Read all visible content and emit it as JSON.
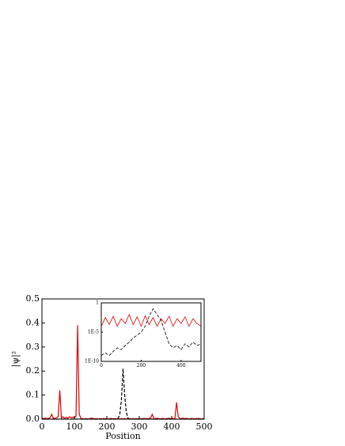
{
  "chart_data": [
    {
      "type": "line",
      "xlabel": "Position",
      "ylabel": "|ψ|²",
      "x": [
        0,
        5,
        10,
        15,
        20,
        25,
        30,
        35,
        40,
        45,
        50,
        55,
        60,
        65,
        70,
        75,
        80,
        85,
        90,
        95,
        100,
        105,
        110,
        115,
        120,
        125,
        130,
        135,
        140,
        145,
        150,
        155,
        160,
        165,
        170,
        175,
        180,
        185,
        190,
        195,
        200,
        205,
        210,
        215,
        220,
        225,
        230,
        235,
        240,
        245,
        250,
        255,
        260,
        265,
        270,
        275,
        280,
        285,
        290,
        295,
        300,
        305,
        310,
        315,
        320,
        325,
        330,
        335,
        340,
        345,
        350,
        355,
        360,
        365,
        370,
        375,
        380,
        385,
        390,
        395,
        400,
        405,
        410,
        415,
        420,
        425,
        430,
        435,
        440,
        445,
        450,
        455,
        460,
        465,
        470,
        475,
        480,
        485,
        490,
        495,
        500
      ],
      "series": [
        {
          "color": "#e00000",
          "dashed": false,
          "values": [
            0.003,
            0.002,
            0.004,
            0.002,
            0.003,
            0.005,
            0.02,
            0.004,
            0.003,
            0.006,
            0.01,
            0.12,
            0.004,
            0.01,
            0.003,
            0.008,
            0.004,
            0.01,
            0.006,
            0.008,
            0.005,
            0.012,
            0.39,
            0.02,
            0.004,
            0.002,
            0.001,
            0.002,
            0.001,
            0.002,
            0.003,
            0.004,
            0.002,
            0.001,
            0.002,
            0.001,
            0.002,
            0.001,
            0.003,
            0.001,
            0.002,
            0.001,
            0.002,
            0.003,
            0.001,
            0.002,
            0.001,
            0.002,
            0.001,
            0.002,
            0.001,
            0.002,
            0.001,
            0.003,
            0.002,
            0.001,
            0.002,
            0.001,
            0.002,
            0.001,
            0.002,
            0.001,
            0.002,
            0.003,
            0.002,
            0.001,
            0.003,
            0.004,
            0.02,
            0.003,
            0.002,
            0.004,
            0.002,
            0.001,
            0.003,
            0.002,
            0.001,
            0.002,
            0.004,
            0.002,
            0.003,
            0.002,
            0.004,
            0.07,
            0.01,
            0.003,
            0.002,
            0.004,
            0.002,
            0.003,
            0.002,
            0.001,
            0.003,
            0.002,
            0.001,
            0.002,
            0.003,
            0.002,
            0.001,
            0.002,
            0.002
          ]
        },
        {
          "color": "#000000",
          "dashed": true,
          "values": [
            0,
            0,
            0,
            0,
            0,
            0,
            0,
            0,
            0,
            0,
            0,
            0,
            0,
            0,
            0,
            0,
            0,
            0,
            0,
            0,
            0,
            0,
            0,
            0,
            0,
            0,
            0,
            0,
            0,
            0,
            0,
            0,
            0,
            0,
            0,
            0,
            0,
            0,
            0,
            0,
            0,
            0,
            0,
            0,
            0,
            0,
            0,
            0.003,
            0.02,
            0.08,
            0.21,
            0.1,
            0.03,
            0.005,
            0,
            0,
            0,
            0,
            0,
            0,
            0,
            0,
            0,
            0,
            0,
            0,
            0,
            0,
            0,
            0,
            0,
            0,
            0,
            0,
            0,
            0,
            0,
            0,
            0,
            0,
            0,
            0,
            0,
            0,
            0,
            0,
            0,
            0,
            0,
            0,
            0,
            0,
            0,
            0,
            0,
            0,
            0,
            0,
            0,
            0,
            0
          ]
        }
      ],
      "xlim": [
        0,
        500
      ],
      "xticks": [
        0,
        100,
        200,
        300,
        400,
        500
      ],
      "ylim": [
        0,
        0.5
      ],
      "yticks": [
        {
          "value": 0,
          "label": "0.0"
        },
        0.1,
        0.2,
        0.3,
        0.4,
        0.5
      ]
    },
    {
      "type": "line",
      "ylog": true,
      "x": [
        0,
        20,
        40,
        60,
        80,
        100,
        120,
        140,
        160,
        180,
        200,
        220,
        240,
        260,
        280,
        300,
        320,
        340,
        360,
        380,
        400,
        420,
        440,
        460,
        480,
        500
      ],
      "series": [
        {
          "color": "#e00000",
          "dashed": false,
          "values": [
            0.0001,
            0.003,
            0.0002,
            0.005,
            0.0001,
            0.002,
            0.0003,
            0.01,
            0.0002,
            0.004,
            0.0001,
            0.006,
            0.0002,
            0.003,
            0.0001,
            0.002,
            0.0003,
            0.005,
            0.0001,
            0.002,
            0.0003,
            0.004,
            0.0001,
            0.002,
            0.0003,
            0.0001
          ]
        },
        {
          "color": "#000000",
          "dashed": true,
          "values": [
            1e-09,
            3e-09,
            1e-09,
            5e-09,
            2e-08,
            1e-08,
            5e-08,
            2e-07,
            1e-06,
            3e-06,
            1e-05,
            0.0001,
            0.005,
            0.1,
            0.01,
            0.001,
            1e-05,
            1e-07,
            2e-08,
            5e-08,
            1e-08,
            1e-07,
            3e-08,
            2e-07,
            5e-08,
            1e-07
          ]
        }
      ],
      "xlim": [
        0,
        500
      ],
      "xticks": [
        0,
        200,
        400
      ],
      "ylim": [
        1e-10,
        1
      ],
      "yticks": [
        1,
        {
          "value": 1e-05,
          "label": "1E-5"
        },
        {
          "value": 1e-10,
          "label": "1E-10"
        }
      ]
    }
  ]
}
